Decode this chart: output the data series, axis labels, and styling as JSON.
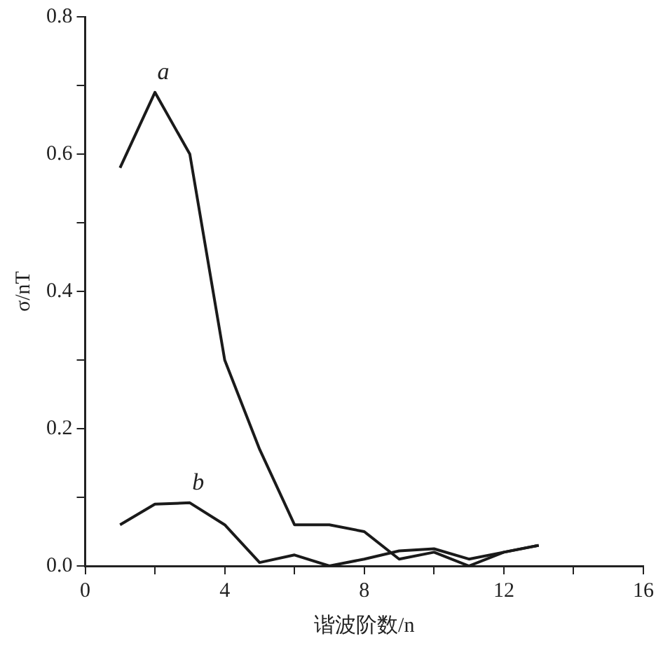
{
  "chart_data": {
    "type": "line",
    "xlabel": "谐波阶数/n",
    "ylabel": "σ/nT",
    "x": [
      1,
      2,
      3,
      4,
      5,
      6,
      7,
      8,
      9,
      10,
      11,
      12,
      13
    ],
    "series": [
      {
        "name": "a",
        "color": "#1a1a1a",
        "values": [
          0.58,
          0.69,
          0.6,
          0.3,
          0.17,
          0.06,
          0.06,
          0.05,
          0.01,
          0.02,
          0.0,
          0.02,
          0.03
        ]
      },
      {
        "name": "b",
        "color": "#1a1a1a",
        "values": [
          0.06,
          0.09,
          0.092,
          0.06,
          0.005,
          0.016,
          0.0,
          0.01,
          0.022,
          0.025,
          0.01,
          0.02,
          0.03
        ]
      }
    ],
    "xlim": [
      0,
      16
    ],
    "xticks": [
      0,
      {
        "value": 2,
        "label": null
      },
      4,
      {
        "value": 6,
        "label": null
      },
      8,
      {
        "value": 10,
        "label": null
      },
      12,
      {
        "value": 14,
        "label": null
      },
      16
    ],
    "ylim": [
      0,
      0.8
    ],
    "yticks": [
      {
        "value": 0,
        "label": "0.0"
      },
      {
        "value": 0.1,
        "label": null
      },
      {
        "value": 0.2,
        "label": "0.2"
      },
      {
        "value": 0.3,
        "label": null
      },
      {
        "value": 0.4,
        "label": "0.4"
      },
      {
        "value": 0.5,
        "label": null
      },
      {
        "value": 0.6,
        "label": "0.6"
      },
      {
        "value": 0.7,
        "label": null
      },
      {
        "value": 0.8,
        "label": "0.8"
      }
    ],
    "grid": false,
    "legend": false,
    "marker": "none",
    "line_style": "solid"
  }
}
